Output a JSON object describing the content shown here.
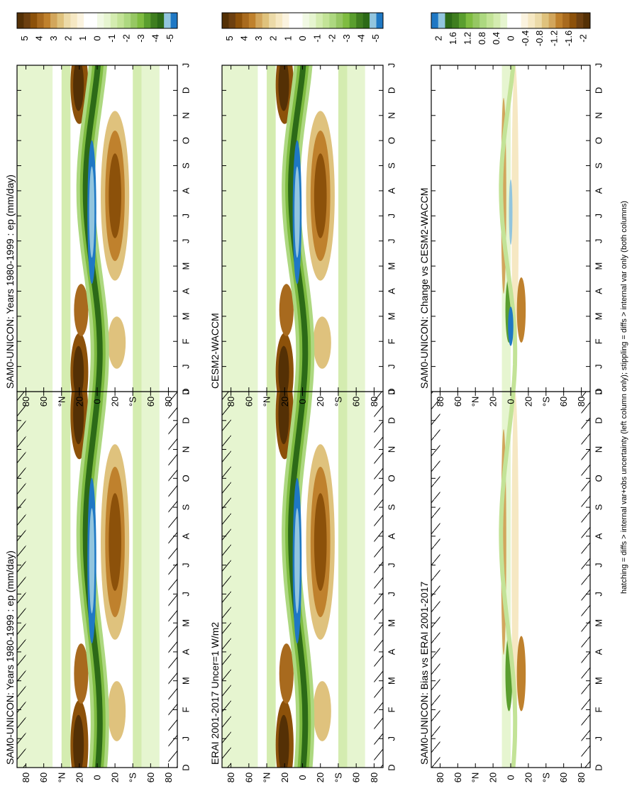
{
  "chart_data": {
    "type": "heatmap",
    "orientation": "rotated-90-ccw",
    "x_ticks": [
      "D",
      "J",
      "F",
      "M",
      "A",
      "M",
      "J",
      "J",
      "A",
      "S",
      "O",
      "N",
      "D",
      "J"
    ],
    "y_ticks": [
      "80",
      "60",
      "°N",
      "20",
      "0",
      "20",
      "°S",
      "60",
      "80"
    ],
    "y_range_deg": [
      90,
      -90
    ],
    "footnote": "hatching = diffs > internal var+obs uncertainty (left column only); stippling = diffs > internal var only (both columns)",
    "field_colorbar": {
      "labels": [
        "5",
        "4",
        "3",
        "2",
        "1",
        "0",
        "-1",
        "-2",
        "-3",
        "-4",
        "-5"
      ],
      "colors": [
        "#543005",
        "#6d4010",
        "#8c510a",
        "#a86a1e",
        "#bf812d",
        "#d2a65c",
        "#dfc27d",
        "#ecdaa8",
        "#f6e8c3",
        "#fbf3df",
        "#ffffff",
        "#ffffff",
        "#f1f9e4",
        "#e6f5d0",
        "#d4ecb0",
        "#c3e397",
        "#add880",
        "#96c763",
        "#7fbc41",
        "#5a9e2e",
        "#3f7e1f",
        "#2c6a17",
        "#92c5de",
        "#1f78c4"
      ]
    },
    "diff_colorbar": {
      "labels": [
        "2",
        "1.6",
        "1.2",
        "0.8",
        "0.4",
        "0",
        "-0.4",
        "-0.8",
        "-1.2",
        "-1.6",
        "-2"
      ],
      "colors": [
        "#1f78c4",
        "#92c5de",
        "#2c6a17",
        "#3f7e1f",
        "#5a9e2e",
        "#7fbc41",
        "#96c763",
        "#add880",
        "#c3e397",
        "#d4ecb0",
        "#e6f5d0",
        "#ffffff",
        "#ffffff",
        "#fbf3df",
        "#f6e8c3",
        "#ecdaa8",
        "#dfc27d",
        "#d2a65c",
        "#bf812d",
        "#a86a1e",
        "#8c510a",
        "#6d4010",
        "#543005"
      ]
    },
    "panels": [
      {
        "title": "SAM0-UNICON: Years 1980-1999 : ep (mm/day)",
        "kind": "field",
        "hatching": true
      },
      {
        "title": "ERAI 2001-2017 Uncer=1 W/m2",
        "kind": "field",
        "hatching": true
      },
      {
        "title": "SAM0-UNICON: Bias vs ERAI 2001-2017",
        "kind": "diff",
        "hatching": true
      },
      {
        "title": "SAM0-UNICON: Years 1980-1999 : ep (mm/day)",
        "kind": "field",
        "hatching": false
      },
      {
        "title": "CESM2-WACCM",
        "kind": "field",
        "hatching": false
      },
      {
        "title": "SAM0-UNICON: Change vs CESM2-WACCM",
        "kind": "diff",
        "hatching": false
      }
    ]
  }
}
